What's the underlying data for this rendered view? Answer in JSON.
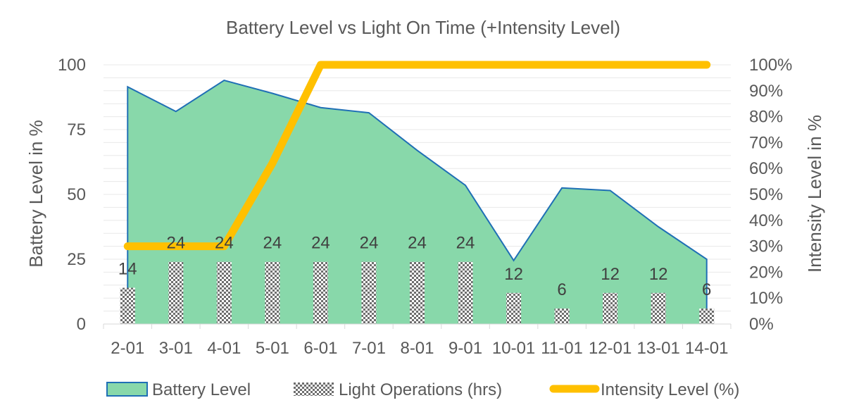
{
  "chart_data": {
    "type": "combo",
    "title": "Battery Level vs Light On Time (+Intensity Level)",
    "categories": [
      "2-01",
      "3-01",
      "4-01",
      "5-01",
      "6-01",
      "7-01",
      "8-01",
      "9-01",
      "10-01",
      "11-01",
      "12-01",
      "13-01",
      "14-01"
    ],
    "series": [
      {
        "name": "Battery Level",
        "type": "area",
        "axis": "left",
        "color": "#88d8aa",
        "line_color": "#1f6fb5",
        "values": [
          91.5,
          82,
          94,
          89,
          83.5,
          81.5,
          67,
          53.5,
          24.5,
          52.5,
          51.5,
          37.5,
          25
        ]
      },
      {
        "name": "Light Operations (hrs)",
        "type": "bar",
        "axis": "left",
        "pattern": "checkerboard",
        "values": [
          14,
          24,
          24,
          24,
          24,
          24,
          24,
          24,
          12,
          6,
          12,
          12,
          6
        ],
        "data_labels": [
          "14",
          "24",
          "24",
          "24",
          "24",
          "24",
          "24",
          "24",
          "12",
          "6",
          "12",
          "12",
          "6"
        ]
      },
      {
        "name": "Intensity Level (%)",
        "type": "line",
        "axis": "right",
        "color": "#ffc000",
        "values": [
          30,
          30,
          30,
          62,
          100,
          100,
          100,
          100,
          100,
          100,
          100,
          100,
          100
        ]
      }
    ],
    "ylabel": "Battery Level in %",
    "y2label": "Intensity Level in %",
    "ylim": [
      0,
      100
    ],
    "y2lim": [
      0,
      100
    ],
    "yticks": [
      "0",
      "25",
      "50",
      "75",
      "100"
    ],
    "y2ticks": [
      "0%",
      "10%",
      "20%",
      "30%",
      "40%",
      "50%",
      "60%",
      "70%",
      "80%",
      "90%",
      "100%"
    ],
    "grid": true,
    "legend_position": "bottom"
  }
}
